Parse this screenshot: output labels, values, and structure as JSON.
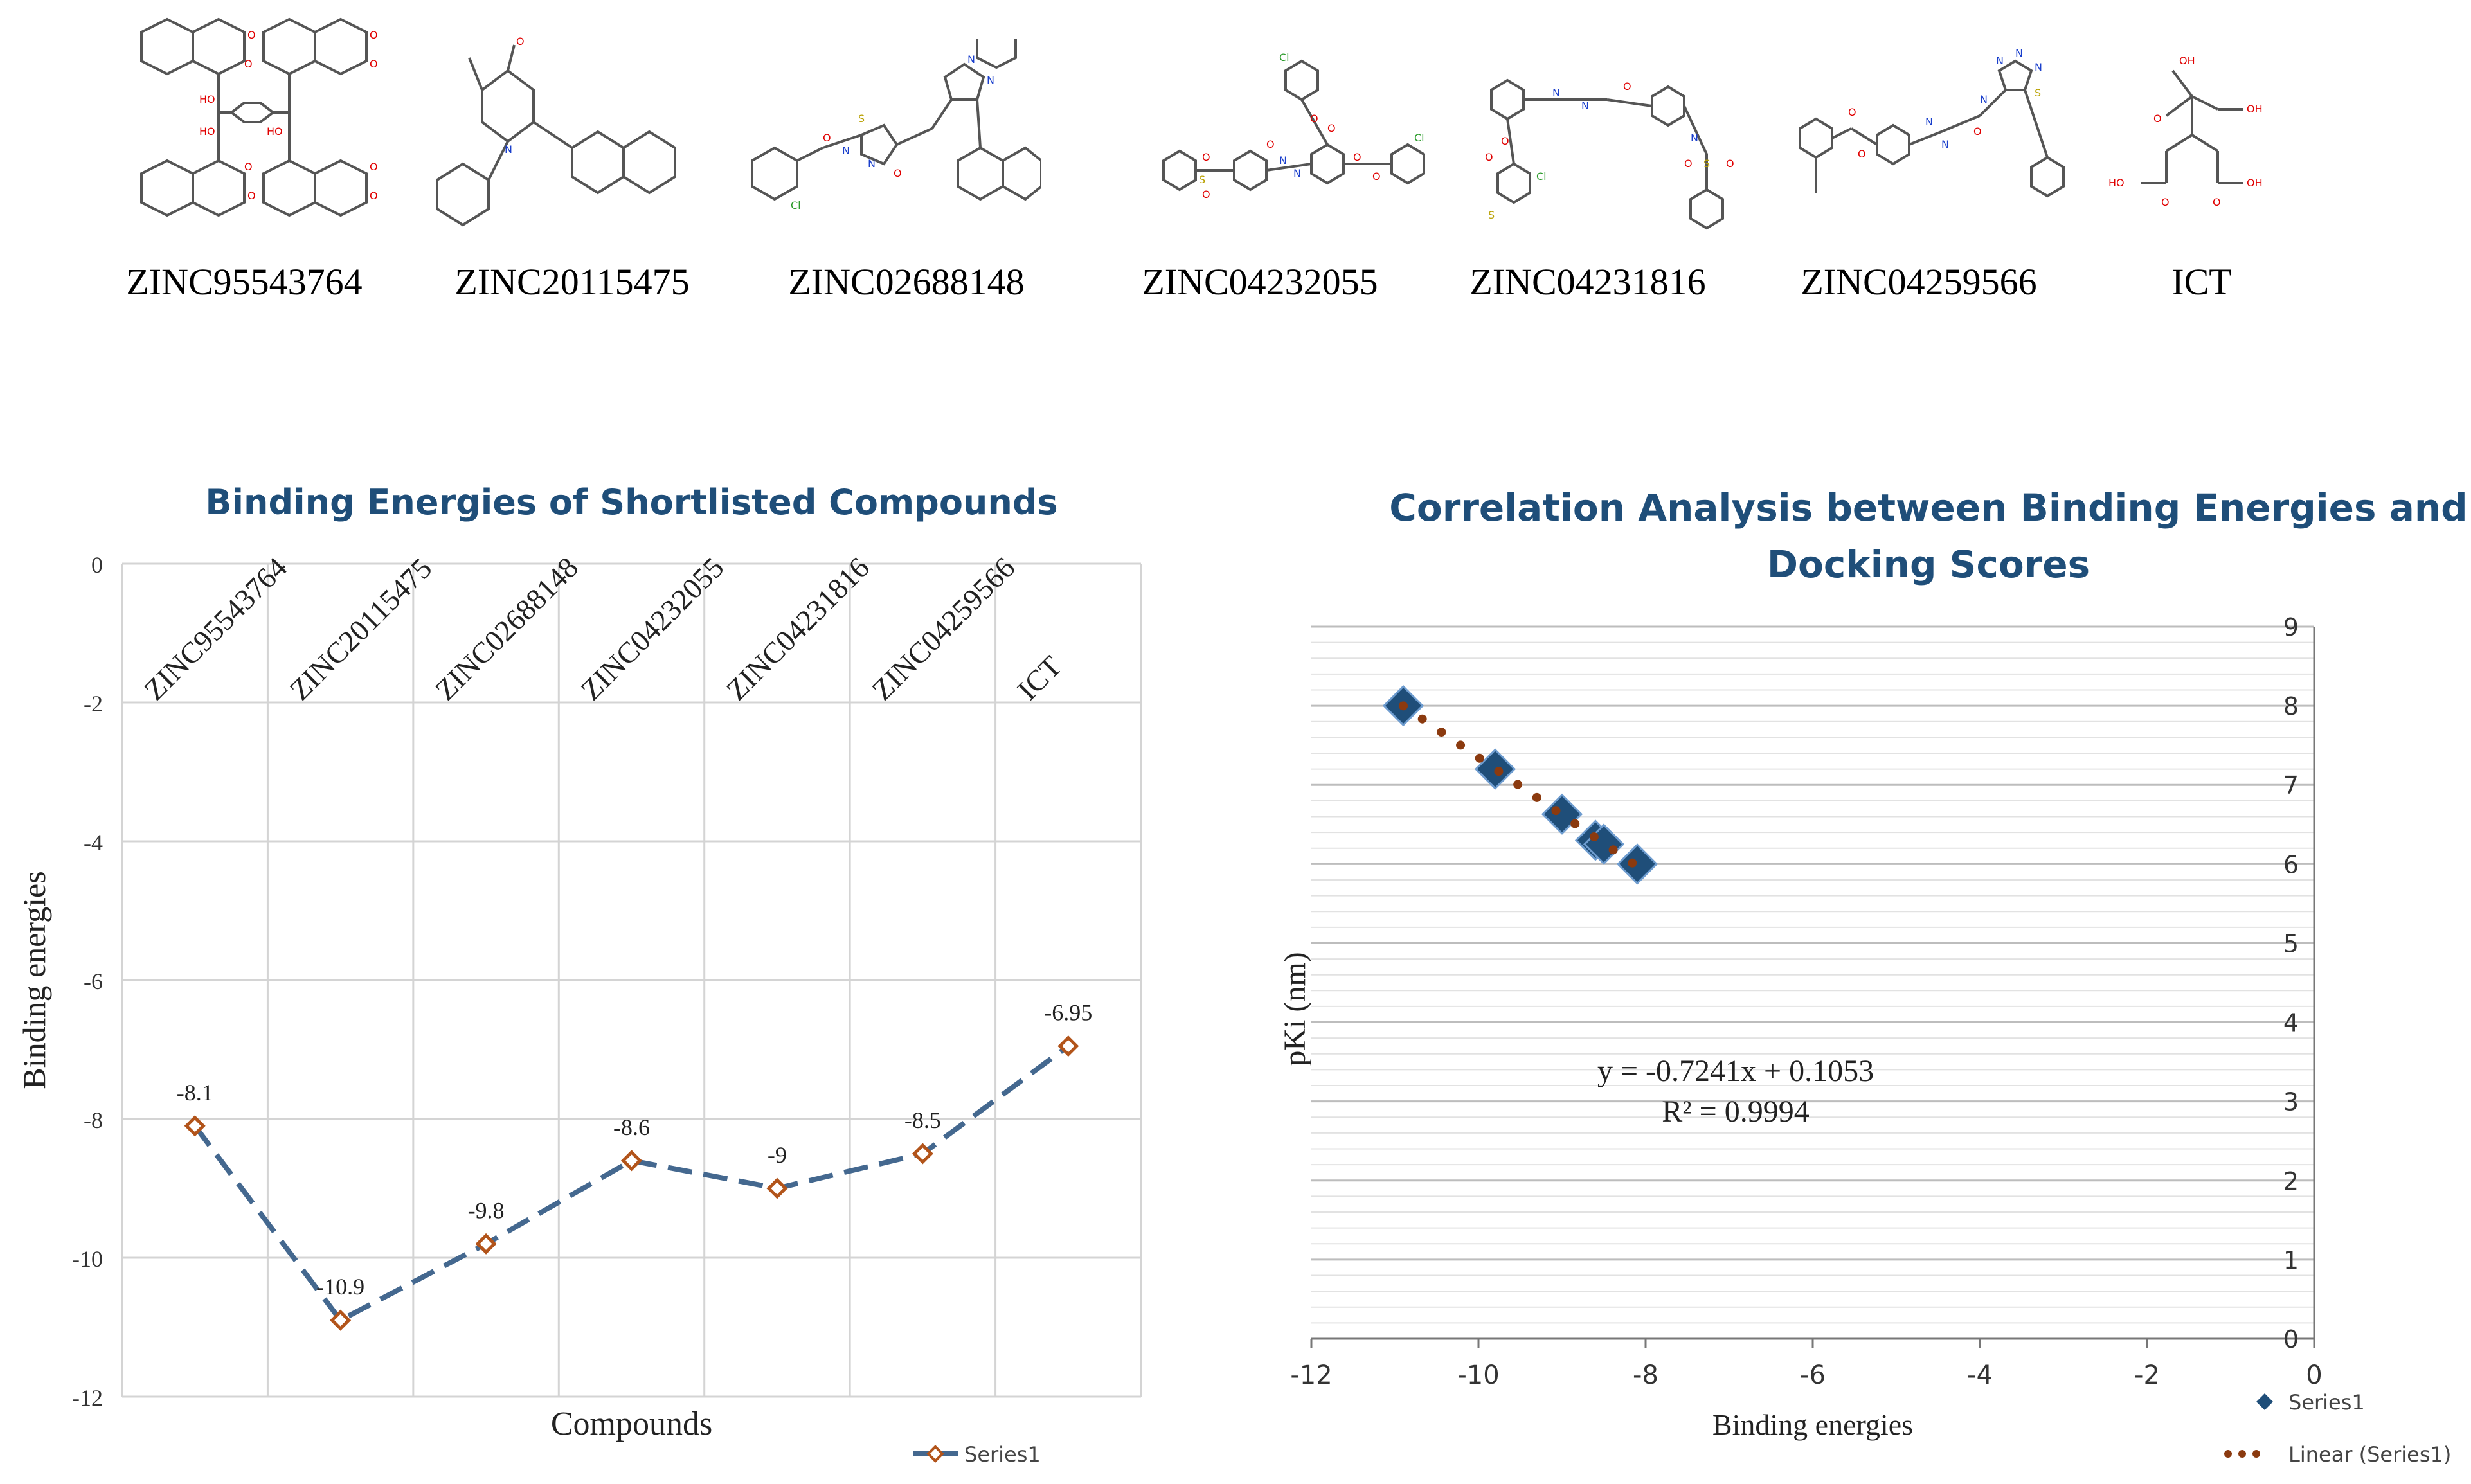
{
  "compounds": [
    "ZINC95543764",
    "ZINC20115475",
    "ZINC02688148",
    "ZINC04232055",
    "ZINC04231816",
    "ZINC04259566",
    "ICT"
  ],
  "structure_atom_labels": {
    "ZINC95543764": [
      "O",
      "O",
      "HO",
      "O",
      "O",
      "HO",
      "O",
      "O",
      "O",
      "O",
      "HO"
    ],
    "ZINC20115475": [
      "O",
      "N"
    ],
    "ZINC02688148": [
      "S",
      "N",
      "N",
      "O",
      "Cl",
      "N",
      "N",
      "O"
    ],
    "ZINC04232055": [
      "Cl",
      "O",
      "O",
      "O",
      "O",
      "N",
      "N",
      "O",
      "S",
      "O",
      "O",
      "Cl"
    ],
    "ZINC04231816": [
      "S",
      "Cl",
      "O",
      "O",
      "N",
      "N",
      "O",
      "N",
      "S",
      "O",
      "O"
    ],
    "ZINC04259566": [
      "O",
      "O",
      "N",
      "N",
      "O",
      "N",
      "N",
      "N",
      "N",
      "S"
    ],
    "ICT": [
      "OH",
      "O",
      "OH",
      "HO",
      "O",
      "O",
      "OH"
    ]
  },
  "colors": {
    "title": "#1f4e79",
    "series_line": "#44688f",
    "marker_edge": "#b2541a",
    "marker_fill": "#ffffff",
    "scatter_marker": "#1f4e79",
    "trendline": "#8b3a0f",
    "grid": "#d4d4d4",
    "hetero_atom": "#e00000"
  },
  "chart_data": [
    {
      "type": "line",
      "title": "Binding Energies of Shortlisted Compounds",
      "xlabel": "Compounds",
      "ylabel": "Binding energies",
      "categories": [
        "ZINC95543764",
        "ZINC20115475",
        "ZINC02688148",
        "ZINC04232055",
        "ZINC04231816",
        "ZINC04259566",
        "ICT"
      ],
      "series": [
        {
          "name": "Series1",
          "values": [
            -8.1,
            -10.9,
            -9.8,
            -8.6,
            -9,
            -8.5,
            -6.95
          ]
        }
      ],
      "data_labels": [
        "-8.1",
        "-10.9",
        "-9.8",
        "-8.6",
        "-9",
        "-8.5",
        "-6.95"
      ],
      "ylim": [
        -12,
        0
      ],
      "yticks": [
        "-12",
        "-10",
        "-8",
        "-6",
        "-4",
        "-2",
        "0"
      ],
      "ytick_values": [
        -12,
        -10,
        -8,
        -6,
        -4,
        -2,
        0
      ],
      "grid": true,
      "legend": "bottom-right"
    },
    {
      "type": "scatter",
      "title_lines": [
        "Correlation Analysis between Binding Energies and",
        "Docking Scores"
      ],
      "xlabel": "Binding energies",
      "ylabel": "pKi (nm)",
      "series": [
        {
          "name": "Series1",
          "x": [
            -10.9,
            -9.8,
            -9.0,
            -8.6,
            -8.5,
            -8.1
          ],
          "y": [
            8.0,
            7.2,
            6.63,
            6.3,
            6.25,
            6.0
          ]
        }
      ],
      "trendline": {
        "name": "Linear (Series1)",
        "x_range": [
          -10.9,
          -8.1
        ],
        "slope": -0.7241,
        "intercept": 0.1053
      },
      "equation_text": "y = -0.7241x + 0.1053",
      "r2_text": "R² = 0.9994",
      "xlim": [
        -12,
        0
      ],
      "ylim": [
        0,
        9
      ],
      "xticks": [
        "-12",
        "-10",
        "-8",
        "-6",
        "-4",
        "-2",
        "0"
      ],
      "xtick_values": [
        -12,
        -10,
        -8,
        -6,
        -4,
        -2,
        0
      ],
      "yticks": [
        "0",
        "1",
        "2",
        "3",
        "4",
        "5",
        "6",
        "7",
        "8",
        "9"
      ],
      "ytick_values": [
        0,
        1,
        2,
        3,
        4,
        5,
        6,
        7,
        8,
        9
      ],
      "grid": true,
      "legend": "bottom-right"
    }
  ]
}
